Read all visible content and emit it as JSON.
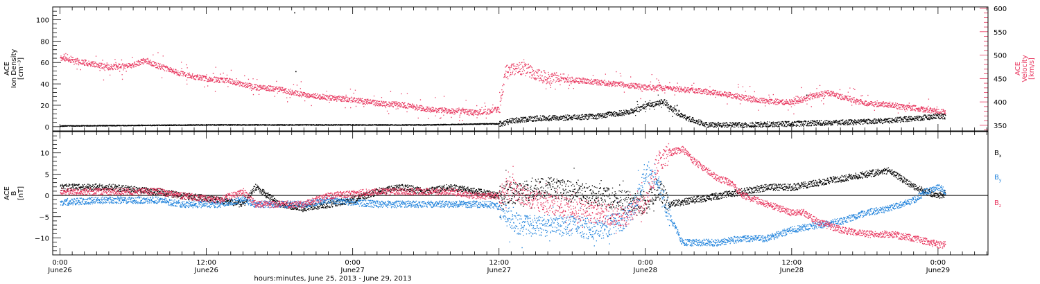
{
  "chart_data": {
    "type": "scatter",
    "xlabel": "hours:minutes, June 25, 2013 - June 29, 2013",
    "x_ticks": [
      {
        "t": 0,
        "top": "0:00",
        "bottom": "June26"
      },
      {
        "t": 12,
        "top": "12:00",
        "bottom": "June26"
      },
      {
        "t": 24,
        "top": "0:00",
        "bottom": "June27"
      },
      {
        "t": 36,
        "top": "12:00",
        "bottom": "June27"
      },
      {
        "t": 48,
        "top": "0:00",
        "bottom": "June28"
      },
      {
        "t": 60,
        "top": "12:00",
        "bottom": "June28"
      },
      {
        "t": 72,
        "top": "0:00",
        "bottom": "June29"
      }
    ],
    "x_range_hours": [
      -0.6,
      76.1
    ],
    "panels": [
      {
        "id": "plasma",
        "left_axis": {
          "label_lines": [
            "ACE",
            "Ion Density",
            "[cm⁻³]"
          ],
          "range": [
            -4,
            112
          ],
          "ticks": [
            0,
            20,
            40,
            60,
            80,
            100
          ],
          "tick_labels": [
            "0",
            "20",
            "40",
            "60",
            "80",
            "100"
          ],
          "color": "#000000"
        },
        "right_axis": {
          "label_lines": [
            "ACE",
            "Velocity",
            "[km/s]"
          ],
          "range": [
            338,
            603
          ],
          "ticks": [
            350,
            400,
            450,
            500,
            550,
            600
          ],
          "tick_labels": [
            "350",
            "400",
            "450",
            "500",
            "550",
            "600"
          ],
          "color": "#e8375f"
        },
        "series": [
          {
            "key": "density",
            "axis": "left",
            "color": "#000000",
            "x": [
              0,
              6,
              12,
              18,
              24,
              30,
              35,
              36,
              36.5,
              37,
              39,
              42,
              44,
              45,
              46,
              47,
              48,
              49,
              49.5,
              50,
              50.5,
              51,
              53,
              56,
              60,
              63,
              66,
              68,
              70,
              72
            ],
            "y": [
              1,
              1.5,
              2,
              2,
              2,
              2,
              3,
              3,
              4,
              6,
              8,
              9,
              10,
              12,
              13,
              15,
              20,
              22,
              24,
              18,
              14,
              10,
              2,
              2,
              3,
              4,
              5,
              6,
              8,
              10
            ]
          },
          {
            "key": "velocity",
            "axis": "right",
            "color": "#e8375f",
            "x": [
              0,
              2,
              4,
              6,
              7,
              8,
              10,
              12,
              14,
              16,
              18,
              20,
              22,
              24,
              26,
              28,
              30,
              32,
              34,
              35,
              36,
              36.5,
              37,
              38,
              39,
              40,
              42,
              44,
              46,
              48,
              50,
              52,
              54,
              56,
              58,
              60,
              62,
              63,
              64,
              66,
              68,
              69,
              70,
              72
            ],
            "y": [
              495,
              485,
              475,
              480,
              490,
              478,
              460,
              450,
              445,
              432,
              428,
              415,
              410,
              405,
              398,
              395,
              385,
              382,
              378,
              380,
              385,
              465,
              470,
              472,
              462,
              450,
              448,
              443,
              438,
              432,
              430,
              425,
              420,
              410,
              402,
              400,
              415,
              420,
              412,
              398,
              395,
              390,
              388,
              380
            ]
          }
        ],
        "outliers": [
          {
            "series": "density",
            "x": 19.2,
            "y": 107
          },
          {
            "series": "density",
            "x": 19.3,
            "y": 52
          },
          {
            "series": "density",
            "x": 61.2,
            "y": 30
          }
        ]
      },
      {
        "id": "magnetic",
        "left_axis": {
          "label_lines": [
            "ACE",
            "B",
            "[nT]"
          ],
          "range": [
            -14,
            15
          ],
          "ticks": [
            -10,
            -5,
            0,
            5,
            10
          ],
          "tick_labels": [
            "−10",
            "−5",
            "0",
            "5",
            "10"
          ],
          "color": "#000000"
        },
        "zero_line": true,
        "series": [
          {
            "key": "bx",
            "name": "B",
            "sub": "x",
            "color": "#000000",
            "x": [
              0,
              4,
              8,
              10,
              13,
              15,
              16,
              18,
              20,
              22,
              24,
              26,
              28,
              30,
              32,
              34,
              36,
              38,
              40,
              42,
              44,
              46,
              48,
              49,
              50,
              52,
              54,
              56,
              58,
              60,
              62,
              64,
              66,
              68,
              69,
              70,
              72,
              72.6
            ],
            "y": [
              2,
              2,
              1,
              0,
              -1,
              -2,
              2,
              -2,
              -3,
              -2,
              -1,
              1,
              2,
              1,
              2,
              1,
              0,
              1,
              2,
              1,
              0,
              -1,
              -2,
              2,
              -2,
              -1,
              0,
              1,
              2,
              2,
              3,
              4,
              5,
              6,
              4,
              2,
              0,
              0.5
            ]
          },
          {
            "key": "by",
            "name": "B",
            "sub": "y",
            "color": "#1f82dc",
            "x": [
              0,
              4,
              8,
              10,
              13,
              15,
              16,
              18,
              20,
              22,
              24,
              26,
              28,
              30,
              32,
              34,
              35,
              36,
              37,
              38,
              40,
              42,
              44,
              46,
              47,
              48,
              49,
              50,
              51,
              52,
              54,
              56,
              58,
              60,
              62,
              64,
              66,
              68,
              70,
              71,
              72,
              72.6
            ],
            "y": [
              -1.5,
              -1,
              -1,
              -2,
              -2,
              -1,
              -2,
              -2,
              -2,
              -1,
              -1.5,
              -2,
              -2,
              -2,
              -2,
              -2,
              -2,
              -2.5,
              -6,
              -7,
              -7,
              -7,
              -8,
              -6,
              -3,
              6,
              3,
              -5,
              -11,
              -11,
              -11,
              -10,
              -10,
              -8,
              -7,
              -6,
              -4,
              -3,
              -1,
              1,
              2,
              1
            ]
          },
          {
            "key": "bz",
            "name": "B",
            "sub": "z",
            "color": "#e8375f",
            "x": [
              0,
              4,
              8,
              10,
              13,
              15,
              16,
              18,
              20,
              22,
              24,
              26,
              28,
              30,
              32,
              34,
              36,
              37,
              38,
              40,
              42,
              44,
              46,
              48,
              49,
              50,
              51,
              52,
              53,
              54,
              55,
              56,
              58,
              60,
              61,
              62,
              64,
              66,
              68,
              70,
              72,
              72.6
            ],
            "y": [
              1,
              1,
              1,
              0,
              -1,
              1,
              -2,
              -2,
              -2,
              0,
              0.5,
              1,
              1,
              1,
              1,
              0,
              0,
              2,
              0,
              -2,
              -3,
              -4,
              -5,
              -2,
              8,
              10,
              11,
              8,
              6,
              4,
              3,
              0,
              -2,
              -4,
              -4,
              -6,
              -8,
              -9,
              -9,
              -10,
              -11.5,
              -11.5
            ]
          }
        ]
      }
    ]
  }
}
